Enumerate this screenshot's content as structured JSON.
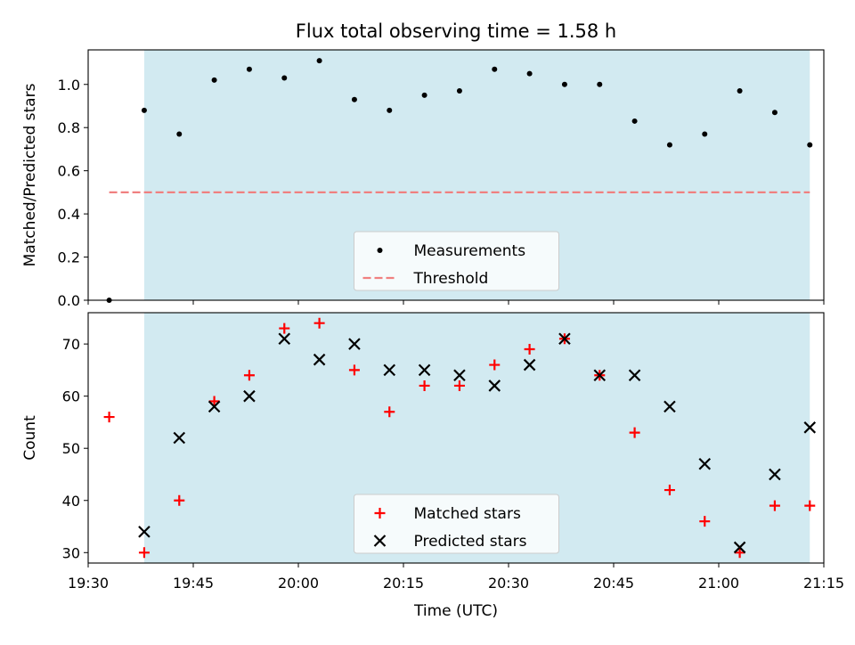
{
  "figure": {
    "title": "Flux total observing time = 1.58 h"
  },
  "chart_data": [
    {
      "type": "scatter",
      "panel": "top",
      "title": "Flux total observing time = 1.58 h",
      "xlabel": "",
      "ylabel": "Matched/Predicted stars",
      "ylim": [
        0,
        1.16
      ],
      "yticks": [
        "0.0",
        "0.2",
        "0.4",
        "0.6",
        "0.8",
        "1.0"
      ],
      "ytick_values": [
        0,
        0.2,
        0.4,
        0.6,
        0.8,
        1.0
      ],
      "shaded_span": [
        "19:38",
        "21:13"
      ],
      "shade_color": "#add8e6",
      "legend_position": "lower center",
      "series": [
        {
          "name": "Measurements",
          "marker": "dot",
          "color": "#000000",
          "x": [
            "19:33",
            "19:38",
            "19:43",
            "19:48",
            "19:53",
            "19:58",
            "20:03",
            "20:08",
            "20:13",
            "20:18",
            "20:23",
            "20:28",
            "20:33",
            "20:38",
            "20:43",
            "20:48",
            "20:53",
            "20:58",
            "21:03",
            "21:08",
            "21:13"
          ],
          "y": [
            0.0,
            0.88,
            0.77,
            1.02,
            1.07,
            1.03,
            1.11,
            0.93,
            0.88,
            0.95,
            0.97,
            1.07,
            1.05,
            1.0,
            1.0,
            0.83,
            0.72,
            0.77,
            0.97,
            0.87,
            0.72
          ]
        },
        {
          "name": "Threshold",
          "marker": "dashed-line",
          "color": "#f08080",
          "x": [
            "19:33",
            "21:13"
          ],
          "y": [
            0.5,
            0.5
          ]
        }
      ]
    },
    {
      "type": "scatter",
      "panel": "bottom",
      "xlabel": "Time (UTC)",
      "ylabel": "Count",
      "ylim": [
        28,
        76
      ],
      "yticks": [
        "30",
        "40",
        "50",
        "60",
        "70"
      ],
      "ytick_values": [
        30,
        40,
        50,
        60,
        70
      ],
      "xticks": [
        "19:30",
        "19:45",
        "20:00",
        "20:15",
        "20:30",
        "20:45",
        "21:00",
        "21:15"
      ],
      "xlim": [
        "19:30",
        "21:15"
      ],
      "shaded_span": [
        "19:38",
        "21:13"
      ],
      "shade_color": "#add8e6",
      "legend_position": "lower center",
      "series": [
        {
          "name": "Matched stars",
          "marker": "plus",
          "color": "#ff0000",
          "x": [
            "19:33",
            "19:38",
            "19:43",
            "19:48",
            "19:53",
            "19:58",
            "20:03",
            "20:08",
            "20:13",
            "20:18",
            "20:23",
            "20:28",
            "20:33",
            "20:38",
            "20:43",
            "20:48",
            "20:53",
            "20:58",
            "21:03",
            "21:08",
            "21:13"
          ],
          "y": [
            56,
            30,
            40,
            59,
            64,
            73,
            74,
            65,
            57,
            62,
            62,
            66,
            69,
            71,
            64,
            53,
            42,
            36,
            30,
            39,
            39
          ]
        },
        {
          "name": "Predicted stars",
          "marker": "x",
          "color": "#000000",
          "x": [
            "19:38",
            "19:43",
            "19:48",
            "19:53",
            "19:58",
            "20:03",
            "20:08",
            "20:13",
            "20:18",
            "20:23",
            "20:28",
            "20:33",
            "20:38",
            "20:43",
            "20:48",
            "20:53",
            "20:58",
            "21:03",
            "21:08",
            "21:13"
          ],
          "y": [
            34,
            52,
            58,
            60,
            71,
            67,
            70,
            65,
            65,
            64,
            62,
            66,
            71,
            64,
            64,
            58,
            47,
            31,
            45,
            54
          ]
        }
      ]
    }
  ]
}
